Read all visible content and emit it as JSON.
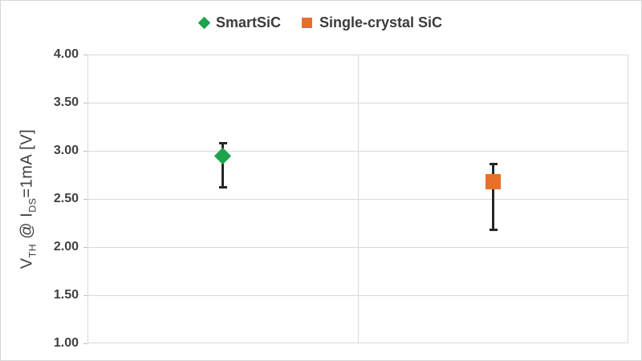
{
  "legend": {
    "items": [
      {
        "label": "SmartSiC",
        "marker": "diamond",
        "color": "#1EA24C"
      },
      {
        "label": "Single-crystal SiC",
        "marker": "square",
        "color": "#E7702B"
      }
    ]
  },
  "y_axis": {
    "title_parts": {
      "v": "V",
      "v_sub": "TH",
      "mid": " @ I",
      "i_sub": "DS",
      "rest": "=1mA [V]"
    },
    "ticks": [
      "4.00",
      "3.50",
      "3.00",
      "2.50",
      "2.00",
      "1.50",
      "1.00"
    ]
  },
  "chart_data": {
    "type": "scatter",
    "categories": [
      "SmartSiC",
      "Single-crystal SiC"
    ],
    "series": [
      {
        "name": "SmartSiC",
        "marker": "diamond",
        "color": "#1EA24C",
        "value": 2.95,
        "error_high": 3.08,
        "error_low": 2.62
      },
      {
        "name": "Single-crystal SiC",
        "marker": "square",
        "color": "#E7702B",
        "value": 2.68,
        "error_high": 2.86,
        "error_low": 2.18
      }
    ],
    "title": "",
    "xlabel": "",
    "ylabel": "V_TH @ I_DS=1mA [V]",
    "ylim": [
      1.0,
      4.0
    ],
    "ytick_step": 0.5,
    "grid": true,
    "legend_position": "top"
  },
  "colors": {
    "grid": "#D9D9D9",
    "error_bar": "#262626",
    "tick_label": "#404040",
    "legend_text": "#3B3B3B",
    "frame": "#D6D6D6"
  }
}
